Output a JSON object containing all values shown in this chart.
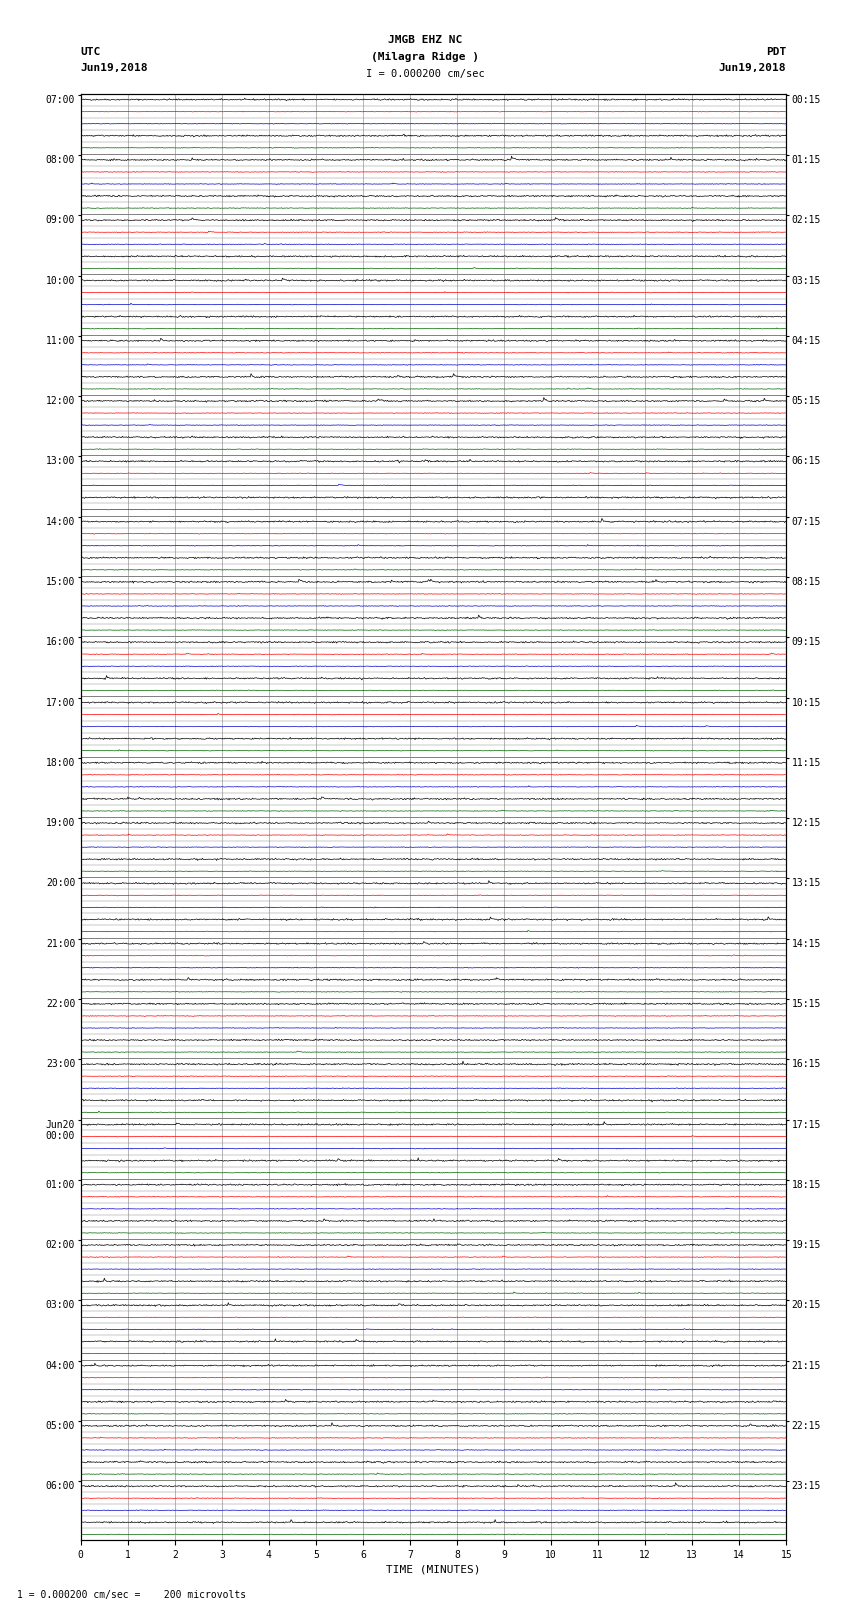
{
  "title_line1": "JMGB EHZ NC",
  "title_line2": "(Milagra Ridge )",
  "scale_label": "I = 0.000200 cm/sec",
  "utc_label": "UTC",
  "pdt_label": "PDT",
  "date_left": "Jun19,2018",
  "date_right": "Jun19,2018",
  "bottom_note": "1 = 0.000200 cm/sec =    200 microvolts",
  "xlabel": "TIME (MINUTES)",
  "left_times": [
    "07:00",
    "08:00",
    "09:00",
    "10:00",
    "11:00",
    "12:00",
    "13:00",
    "14:00",
    "15:00",
    "16:00",
    "17:00",
    "18:00",
    "19:00",
    "20:00",
    "21:00",
    "22:00",
    "23:00",
    "Jun20\n00:00",
    "01:00",
    "02:00",
    "03:00",
    "04:00",
    "05:00",
    "06:00"
  ],
  "right_times": [
    "00:15",
    "01:15",
    "02:15",
    "03:15",
    "04:15",
    "05:15",
    "06:15",
    "07:15",
    "08:15",
    "09:15",
    "10:15",
    "11:15",
    "12:15",
    "13:15",
    "14:15",
    "15:15",
    "16:15",
    "17:15",
    "18:15",
    "19:15",
    "20:15",
    "21:15",
    "22:15",
    "23:15"
  ],
  "num_rows": 24,
  "sub_traces": 5,
  "minutes_per_row": 15,
  "bg_color": "#ffffff",
  "grid_color": "#808080",
  "trace_colors": [
    "#000000",
    "#ff0000",
    "#0000cc",
    "#006400"
  ],
  "seed": 42
}
